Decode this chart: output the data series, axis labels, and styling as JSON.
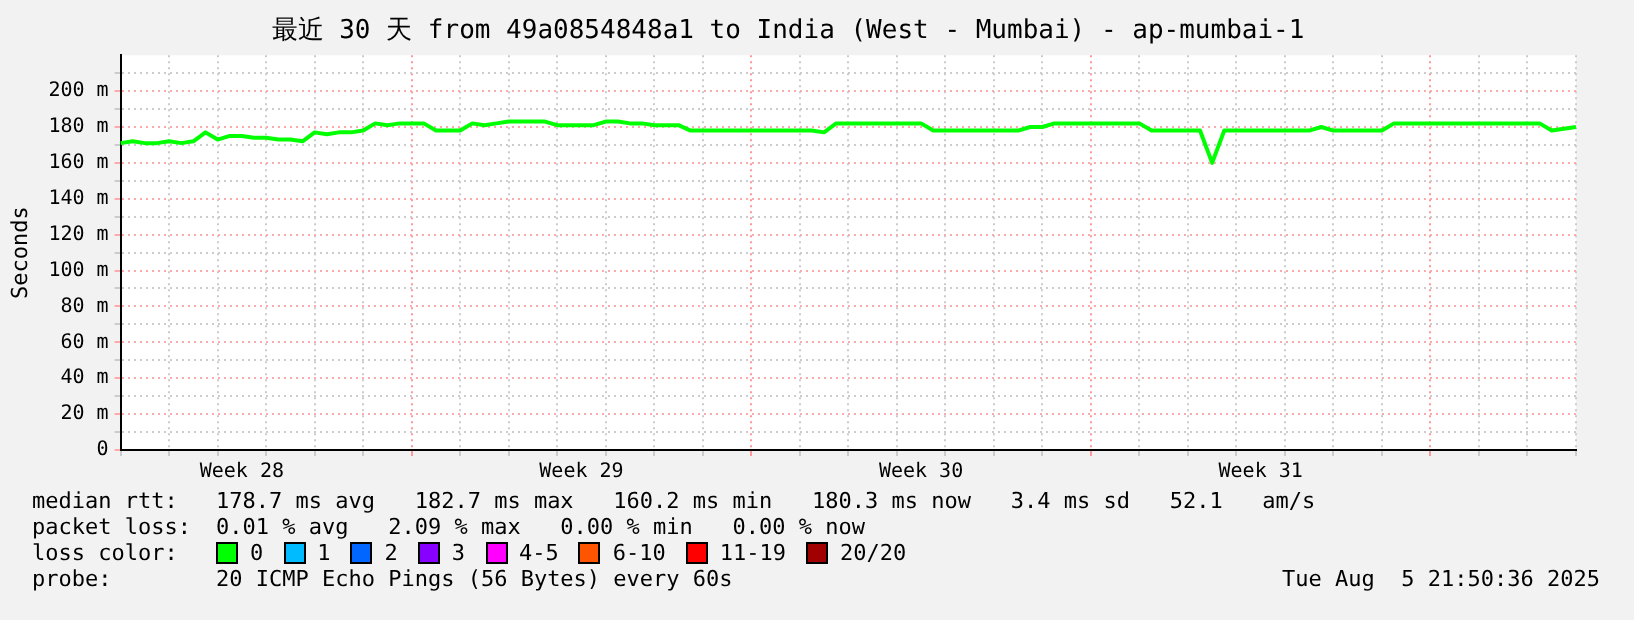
{
  "chart_data": {
    "type": "line",
    "title": "最近 30 天 from 49a0854848a1 to India (West - Mumbai) - ap-mumbai-1",
    "ylabel": "Seconds",
    "categories": [
      null,
      null,
      null,
      null,
      null,
      null,
      null,
      null,
      null,
      null,
      "Week 28",
      null,
      null,
      null,
      null,
      null,
      null,
      null,
      null,
      null,
      null,
      null,
      null,
      null,
      null,
      null,
      null,
      null,
      null,
      null,
      null,
      null,
      null,
      null,
      null,
      null,
      null,
      null,
      "Week 29",
      null,
      null,
      null,
      null,
      null,
      null,
      null,
      null,
      null,
      null,
      null,
      null,
      null,
      null,
      null,
      null,
      null,
      null,
      null,
      null,
      null,
      null,
      null,
      null,
      null,
      null,
      null,
      "Week 30",
      null,
      null,
      null,
      null,
      null,
      null,
      null,
      null,
      null,
      null,
      null,
      null,
      null,
      null,
      null,
      null,
      null,
      null,
      null,
      null,
      null,
      null,
      null,
      null,
      null,
      null,
      null,
      "Week 31",
      null,
      null,
      null,
      null,
      null,
      null,
      null,
      null,
      null,
      null,
      null,
      null,
      null,
      null,
      null,
      null,
      null,
      null,
      null,
      null,
      null,
      null,
      null,
      null,
      null,
      null
    ],
    "series": [
      {
        "name": "0",
        "color": "#00ff00",
        "values": [
          171,
          172,
          171,
          171,
          172,
          171,
          172,
          177,
          173,
          175,
          175,
          174,
          174,
          173,
          173,
          172,
          177,
          176,
          177,
          177,
          178,
          182,
          181,
          182,
          182,
          182,
          178,
          178,
          178,
          182,
          181,
          182,
          183,
          183,
          183,
          183,
          181,
          181,
          181,
          181,
          183,
          183,
          182,
          182,
          181,
          181,
          181,
          178,
          178,
          178,
          178,
          178,
          178,
          178,
          178,
          178,
          178,
          178,
          177,
          182,
          182,
          182,
          182,
          182,
          182,
          182,
          182,
          178,
          178,
          178,
          178,
          178,
          178,
          178,
          178,
          180,
          180,
          182,
          182,
          182,
          182,
          182,
          182,
          182,
          182,
          178,
          178,
          178,
          178,
          178,
          160,
          178,
          178,
          178,
          178,
          178,
          178,
          178,
          178,
          180,
          178,
          178,
          178,
          178,
          178,
          182,
          182,
          182,
          182,
          182,
          182,
          182,
          182,
          182,
          182,
          182,
          182,
          182,
          178,
          179,
          180
        ]
      },
      {
        "name": "1",
        "color": "#00bbff",
        "values": [
          null,
          null,
          null,
          null,
          null,
          null,
          null,
          null,
          null,
          null,
          null,
          null,
          null,
          null,
          null,
          null,
          null,
          null,
          null,
          null,
          null,
          null,
          null,
          null,
          null,
          null,
          null,
          null,
          null,
          null,
          null,
          null,
          null,
          null,
          null,
          null,
          null,
          null,
          null,
          null,
          null,
          null,
          null,
          null,
          null,
          null,
          null,
          null,
          null,
          null,
          null,
          null,
          null,
          null,
          null,
          null,
          null,
          null,
          null,
          null,
          null,
          null,
          null,
          null,
          null,
          null,
          null,
          null,
          null,
          null,
          null,
          null,
          null,
          null,
          null,
          null,
          null,
          null,
          null,
          null,
          null,
          null,
          null,
          null,
          null,
          null,
          null,
          null,
          null,
          null,
          null,
          null,
          null,
          null,
          null,
          null,
          null,
          null,
          null,
          null,
          null,
          null,
          null,
          null,
          null,
          null,
          null,
          null,
          null,
          null,
          null,
          null,
          null,
          null,
          null,
          null,
          null,
          null,
          null,
          null,
          null
        ]
      },
      {
        "name": "2",
        "color": "#0066ff",
        "values": [
          null,
          null,
          null,
          null,
          null,
          null,
          null,
          null,
          null,
          null,
          null,
          null,
          null,
          null,
          null,
          null,
          null,
          null,
          null,
          null,
          null,
          null,
          null,
          null,
          null,
          null,
          null,
          null,
          null,
          null,
          null,
          null,
          null,
          null,
          null,
          null,
          null,
          null,
          null,
          null,
          null,
          null,
          null,
          null,
          null,
          null,
          null,
          null,
          null,
          null,
          null,
          null,
          null,
          null,
          null,
          null,
          null,
          null,
          null,
          null,
          null,
          null,
          null,
          null,
          null,
          null,
          null,
          null,
          null,
          null,
          null,
          null,
          null,
          null,
          null,
          null,
          null,
          null,
          null,
          null,
          null,
          null,
          null,
          null,
          null,
          null,
          null,
          null,
          null,
          null,
          null,
          null,
          null,
          null,
          null,
          null,
          null,
          null,
          null,
          null,
          null,
          null,
          null,
          null,
          null,
          null,
          null,
          null,
          null,
          null,
          null,
          null,
          null,
          null,
          null,
          null,
          null,
          null,
          null,
          null,
          null
        ]
      },
      {
        "name": "3",
        "color": "#8800ff",
        "values": [
          null,
          null,
          null,
          null,
          null,
          null,
          null,
          null,
          null,
          null,
          null,
          null,
          null,
          null,
          null,
          null,
          null,
          null,
          null,
          null,
          null,
          null,
          null,
          null,
          null,
          null,
          null,
          null,
          null,
          null,
          null,
          null,
          null,
          null,
          null,
          null,
          null,
          null,
          null,
          null,
          null,
          null,
          null,
          null,
          null,
          null,
          null,
          null,
          null,
          null,
          null,
          null,
          null,
          null,
          null,
          null,
          null,
          null,
          null,
          null,
          null,
          null,
          null,
          null,
          null,
          null,
          null,
          null,
          null,
          null,
          null,
          null,
          null,
          null,
          null,
          null,
          null,
          null,
          null,
          null,
          null,
          null,
          null,
          null,
          null,
          null,
          null,
          null,
          null,
          null,
          null,
          null,
          null,
          null,
          null,
          null,
          null,
          null,
          null,
          null,
          null,
          null,
          null,
          null,
          null,
          null,
          null,
          null,
          null,
          null,
          null,
          null,
          null,
          null,
          null,
          null,
          null,
          null,
          null,
          null,
          null
        ]
      },
      {
        "name": "4-5",
        "color": "#ff00ff",
        "values": [
          null,
          null,
          null,
          null,
          null,
          null,
          null,
          null,
          null,
          null,
          null,
          null,
          null,
          null,
          null,
          null,
          null,
          null,
          null,
          null,
          null,
          null,
          null,
          null,
          null,
          null,
          null,
          null,
          null,
          null,
          null,
          null,
          null,
          null,
          null,
          null,
          null,
          null,
          null,
          null,
          null,
          null,
          null,
          null,
          null,
          null,
          null,
          null,
          null,
          null,
          null,
          null,
          null,
          null,
          null,
          null,
          null,
          null,
          null,
          null,
          null,
          null,
          null,
          null,
          null,
          null,
          null,
          null,
          null,
          null,
          null,
          null,
          null,
          null,
          null,
          null,
          null,
          null,
          null,
          null,
          null,
          null,
          null,
          null,
          null,
          null,
          null,
          null,
          null,
          null,
          null,
          null,
          null,
          null,
          null,
          null,
          null,
          null,
          null,
          null,
          null,
          null,
          null,
          null,
          null,
          null,
          null,
          null,
          null,
          null,
          null,
          null,
          null,
          null,
          null,
          null,
          null,
          null,
          null,
          null,
          null
        ]
      },
      {
        "name": "6-10",
        "color": "#ff5500",
        "values": [
          null,
          null,
          null,
          null,
          null,
          null,
          null,
          null,
          null,
          null,
          null,
          null,
          null,
          null,
          null,
          null,
          null,
          null,
          null,
          null,
          null,
          null,
          null,
          null,
          null,
          null,
          null,
          null,
          null,
          null,
          null,
          null,
          null,
          null,
          null,
          null,
          null,
          null,
          null,
          null,
          null,
          null,
          null,
          null,
          null,
          null,
          null,
          null,
          null,
          null,
          null,
          null,
          null,
          null,
          null,
          null,
          null,
          null,
          null,
          null,
          null,
          null,
          null,
          null,
          null,
          null,
          null,
          null,
          null,
          null,
          null,
          null,
          null,
          null,
          null,
          null,
          null,
          null,
          null,
          null,
          null,
          null,
          null,
          null,
          null,
          null,
          null,
          null,
          null,
          null,
          null,
          null,
          null,
          null,
          null,
          null,
          null,
          null,
          null,
          null,
          null,
          null,
          null,
          null,
          null,
          null,
          null,
          null,
          null,
          null,
          null,
          null,
          null,
          null,
          null,
          null,
          null,
          null,
          null,
          null,
          null
        ]
      },
      {
        "name": "11-19",
        "color": "#ff0000",
        "values": [
          null,
          null,
          null,
          null,
          null,
          null,
          null,
          null,
          null,
          null,
          null,
          null,
          null,
          null,
          null,
          null,
          null,
          null,
          null,
          null,
          null,
          null,
          null,
          null,
          null,
          null,
          null,
          null,
          null,
          null,
          null,
          null,
          null,
          null,
          null,
          null,
          null,
          null,
          null,
          null,
          null,
          null,
          null,
          null,
          null,
          null,
          null,
          null,
          null,
          null,
          null,
          null,
          null,
          null,
          null,
          null,
          null,
          null,
          null,
          null,
          null,
          null,
          null,
          null,
          null,
          null,
          null,
          null,
          null,
          null,
          null,
          null,
          null,
          null,
          null,
          null,
          null,
          null,
          null,
          null,
          null,
          null,
          null,
          null,
          null,
          null,
          null,
          null,
          null,
          null,
          null,
          null,
          null,
          null,
          null,
          null,
          null,
          null,
          null,
          null,
          null,
          null,
          null,
          null,
          null,
          null,
          null,
          null,
          null,
          null,
          null,
          null,
          null,
          null,
          null,
          null,
          null,
          null,
          null,
          null,
          null
        ]
      },
      {
        "name": "20/20",
        "color": "#a10000",
        "values": [
          null,
          null,
          null,
          null,
          null,
          null,
          null,
          null,
          null,
          null,
          null,
          null,
          null,
          null,
          null,
          null,
          null,
          null,
          null,
          null,
          null,
          null,
          null,
          null,
          null,
          null,
          null,
          null,
          null,
          null,
          null,
          null,
          null,
          null,
          null,
          null,
          null,
          null,
          null,
          null,
          null,
          null,
          null,
          null,
          null,
          null,
          null,
          null,
          null,
          null,
          null,
          null,
          null,
          null,
          null,
          null,
          null,
          null,
          null,
          null,
          null,
          null,
          null,
          null,
          null,
          null,
          null,
          null,
          null,
          null,
          null,
          null,
          null,
          null,
          null,
          null,
          null,
          null,
          null,
          null,
          null,
          null,
          null,
          null,
          null,
          null,
          null,
          null,
          null,
          null,
          null,
          null,
          null,
          null,
          null,
          null,
          null,
          null,
          null,
          null,
          null,
          null,
          null,
          null,
          null,
          null,
          null,
          null,
          null,
          null,
          null,
          null,
          null,
          null,
          null,
          null,
          null,
          null,
          null,
          null,
          null
        ]
      }
    ],
    "legend_title": "loss color:",
    "legend": "bottom",
    "marker": "none",
    "grid": true,
    "ylim": [
      0,
      220
    ],
    "yticks": [
      0,
      {
        "value": 10,
        "label": null
      },
      {
        "value": 20,
        "label": "20 m"
      },
      {
        "value": 30,
        "label": null
      },
      {
        "value": 40,
        "label": "40 m"
      },
      {
        "value": 50,
        "label": null
      },
      {
        "value": 60,
        "label": "60 m"
      },
      {
        "value": 70,
        "label": null
      },
      {
        "value": 80,
        "label": "80 m"
      },
      {
        "value": 90,
        "label": null
      },
      {
        "value": 100,
        "label": "100 m"
      },
      {
        "value": 110,
        "label": null
      },
      {
        "value": 120,
        "label": "120 m"
      },
      {
        "value": 130,
        "label": null
      },
      {
        "value": 140,
        "label": "140 m"
      },
      {
        "value": 150,
        "label": null
      },
      {
        "value": 160,
        "label": "160 m"
      },
      {
        "value": 170,
        "label": null
      },
      {
        "value": 180,
        "label": "180 m"
      },
      {
        "value": 190,
        "label": null
      },
      {
        "value": 200,
        "label": "200 m"
      },
      {
        "value": 210,
        "label": null
      }
    ],
    "annotations": [
      "median rtt:",
      "178.7 ms avg   182.7 ms max   160.2 ms min   180.3 ms now   3.4 ms sd   52.1   am/s",
      "packet loss:",
      "0.01 % avg   2.09 % max   0.00 % min   0.00 % now",
      "probe:",
      "20 ICMP Echo Pings (56 Bytes) every 60s",
      "Tue Aug  5 21:50:36 2025"
    ]
  }
}
